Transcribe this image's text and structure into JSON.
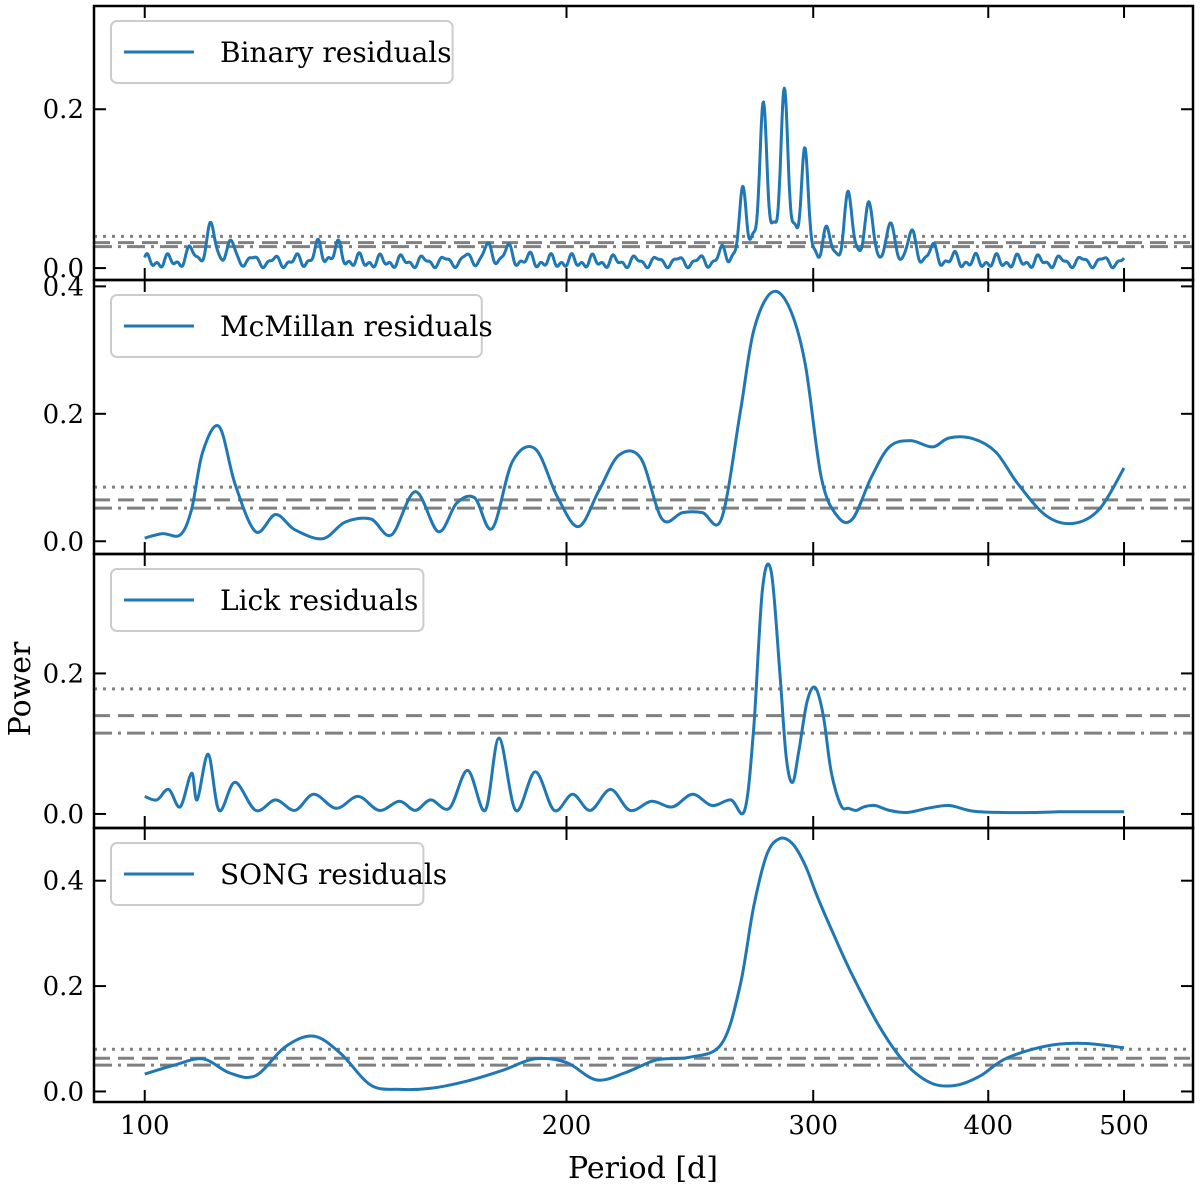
{
  "chart_data": {
    "type": "line",
    "xlabel": "Period [d]",
    "ylabel": "Power",
    "xscale": "log",
    "xlim": [
      92,
      560
    ],
    "xticks": [
      {
        "value": 100,
        "label": "100"
      },
      {
        "value": 200,
        "label": "200"
      },
      {
        "value": 300,
        "label": "300"
      },
      {
        "value": 400,
        "label": "400"
      },
      {
        "value": 500,
        "label": "500"
      }
    ],
    "line_color": "#1f77b4",
    "threshold_color": "#808080",
    "panels": [
      {
        "name": "Binary residuals",
        "legend": "Binary residuals",
        "ylim": [
          -0.015,
          0.33
        ],
        "yticks": [
          {
            "value": 0.0,
            "label": "0.0"
          },
          {
            "value": 0.2,
            "label": "0.2"
          }
        ],
        "thresholds": {
          "dotted": 0.04,
          "dashed": 0.032,
          "dashdot": 0.027
        },
        "curve": {
          "kind": "oscillating",
          "x_start": 100,
          "x_end": 500,
          "samples": 1600,
          "base": 0.015,
          "noise_amp": 0.022,
          "omega": 180,
          "bumps": [
            {
              "x": 112,
              "h": 0.045,
              "w": 0.035
            },
            {
              "x": 135,
              "h": 0.025,
              "w": 0.03
            },
            {
              "x": 178,
              "h": 0.02,
              "w": 0.04
            },
            {
              "x": 278,
              "h": 0.19,
              "w": 0.045
            },
            {
              "x": 292,
              "h": 0.13,
              "w": 0.03
            },
            {
              "x": 320,
              "h": 0.08,
              "w": 0.04
            },
            {
              "x": 345,
              "h": 0.04,
              "w": 0.06
            }
          ]
        }
      },
      {
        "name": "McMillan residuals",
        "legend": "McMillan residuals",
        "ylim": [
          -0.02,
          0.41
        ],
        "yticks": [
          {
            "value": 0.0,
            "label": "0.0"
          },
          {
            "value": 0.2,
            "label": "0.2"
          },
          {
            "value": 0.4,
            "label": "0.4"
          }
        ],
        "thresholds": {
          "dotted": 0.085,
          "dashed": 0.065,
          "dashdot": 0.052
        },
        "curve": {
          "kind": "points",
          "x": [
            100,
            103,
            106,
            108,
            110,
            113,
            116,
            120,
            124,
            128,
            134,
            139,
            145,
            150,
            156,
            162,
            167,
            172,
            177,
            183,
            190,
            197,
            204,
            211,
            218,
            226,
            234,
            242,
            250,
            258,
            266,
            272,
            280,
            288,
            296,
            304,
            312,
            320,
            330,
            340,
            352,
            365,
            375,
            390,
            405,
            420,
            440,
            460,
            480,
            500
          ],
          "y": [
            0.005,
            0.012,
            0.01,
            0.05,
            0.14,
            0.18,
            0.09,
            0.015,
            0.042,
            0.018,
            0.004,
            0.03,
            0.035,
            0.01,
            0.078,
            0.015,
            0.06,
            0.068,
            0.02,
            0.125,
            0.145,
            0.07,
            0.023,
            0.08,
            0.135,
            0.13,
            0.035,
            0.045,
            0.045,
            0.035,
            0.2,
            0.33,
            0.39,
            0.37,
            0.28,
            0.1,
            0.04,
            0.035,
            0.1,
            0.148,
            0.158,
            0.148,
            0.162,
            0.161,
            0.14,
            0.09,
            0.04,
            0.028,
            0.05,
            0.115
          ]
        }
      },
      {
        "name": "Lick residuals",
        "legend": "Lick residuals",
        "ylim": [
          -0.02,
          0.37
        ],
        "yticks": [
          {
            "value": 0.0,
            "label": "0.0"
          },
          {
            "value": 0.2,
            "label": "0.2"
          }
        ],
        "thresholds": {
          "dotted": 0.178,
          "dashed": 0.14,
          "dashdot": 0.115
        },
        "curve": {
          "kind": "points",
          "x": [
            100,
            102,
            104,
            106,
            108,
            109,
            111,
            113,
            116,
            120,
            124,
            128,
            132,
            137,
            142,
            147,
            152,
            156,
            160,
            165,
            170,
            175,
            179,
            184,
            190,
            196,
            202,
            208,
            215,
            222,
            230,
            238,
            246,
            254,
            262,
            268,
            272,
            276,
            280,
            284,
            287,
            290,
            293,
            297,
            301,
            305,
            309,
            314,
            318,
            322,
            326,
            332,
            340,
            350,
            362,
            375,
            390,
            410,
            430,
            450,
            470,
            500
          ],
          "y": [
            0.025,
            0.02,
            0.035,
            0.01,
            0.058,
            0.02,
            0.085,
            0.005,
            0.045,
            0.005,
            0.02,
            0.005,
            0.028,
            0.008,
            0.025,
            0.005,
            0.018,
            0.005,
            0.02,
            0.008,
            0.062,
            0.005,
            0.108,
            0.005,
            0.06,
            0.005,
            0.028,
            0.005,
            0.035,
            0.005,
            0.018,
            0.01,
            0.028,
            0.012,
            0.02,
            0.005,
            0.12,
            0.32,
            0.345,
            0.2,
            0.08,
            0.045,
            0.09,
            0.16,
            0.18,
            0.14,
            0.06,
            0.012,
            0.008,
            0.005,
            0.01,
            0.012,
            0.005,
            0.002,
            0.008,
            0.012,
            0.004,
            0.002,
            0.002,
            0.003,
            0.003,
            0.003
          ]
        }
      },
      {
        "name": "SONG residuals",
        "legend": "SONG residuals",
        "ylim": [
          -0.02,
          0.5
        ],
        "yticks": [
          {
            "value": 0.0,
            "label": "0.0"
          },
          {
            "value": 0.2,
            "label": "0.2"
          },
          {
            "value": 0.4,
            "label": "0.4"
          }
        ],
        "thresholds": {
          "dotted": 0.08,
          "dashed": 0.063,
          "dashdot": 0.05
        },
        "curve": {
          "kind": "points",
          "x": [
            100,
            105,
            110,
            115,
            120,
            126,
            132,
            138,
            145,
            152,
            160,
            170,
            180,
            190,
            200,
            210,
            220,
            232,
            245,
            258,
            266,
            272,
            278,
            284,
            290,
            296,
            302,
            310,
            320,
            335,
            350,
            365,
            380,
            395,
            410,
            430,
            450,
            470,
            500
          ],
          "y": [
            0.033,
            0.05,
            0.062,
            0.035,
            0.03,
            0.085,
            0.105,
            0.072,
            0.012,
            0.004,
            0.006,
            0.02,
            0.04,
            0.062,
            0.055,
            0.022,
            0.035,
            0.06,
            0.065,
            0.09,
            0.2,
            0.35,
            0.45,
            0.48,
            0.47,
            0.43,
            0.37,
            0.3,
            0.22,
            0.12,
            0.05,
            0.015,
            0.012,
            0.03,
            0.06,
            0.08,
            0.09,
            0.091,
            0.083
          ]
        }
      }
    ]
  }
}
